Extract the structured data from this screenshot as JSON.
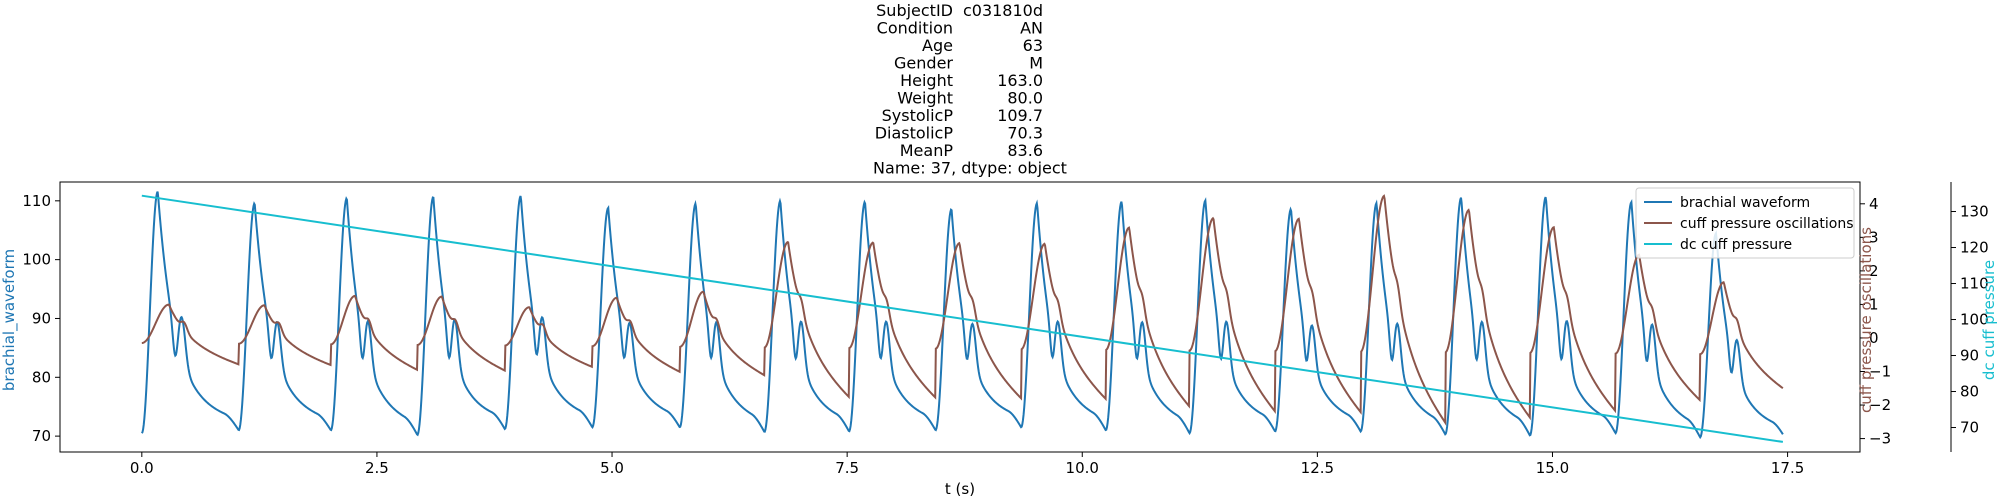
{
  "chart_data": {
    "type": "line",
    "title_lines": [
      {
        "key": "SubjectID",
        "value": "c031810d"
      },
      {
        "key": "Condition",
        "value": "AN"
      },
      {
        "key": "Age",
        "value": "63"
      },
      {
        "key": "Gender",
        "value": "M"
      },
      {
        "key": "Height",
        "value": "163.0"
      },
      {
        "key": "Weight",
        "value": "80.0"
      },
      {
        "key": "SystolicP",
        "value": "109.7"
      },
      {
        "key": "DiastolicP",
        "value": "70.3"
      },
      {
        "key": "MeanP",
        "value": "83.6"
      }
    ],
    "title_footer": "Name: 37, dtype: object",
    "xlabel": "t (s)",
    "ylabel_left": "brachial_waveform",
    "ylabel_right1": "cuff pressure oscillations",
    "ylabel_right2": "dc cuff pressure",
    "xlim": [
      -0.87,
      18.27
    ],
    "ylim_left": [
      67.3,
      113.2
    ],
    "ylim_right1": [
      -3.4,
      4.65
    ],
    "ylim_right2": [
      63.2,
      138.2
    ],
    "x_ticks": [
      0.0,
      2.5,
      5.0,
      7.5,
      10.0,
      12.5,
      15.0,
      17.5
    ],
    "x_tick_labels": [
      "0.0",
      "2.5",
      "5.0",
      "7.5",
      "10.0",
      "12.5",
      "15.0",
      "17.5"
    ],
    "y_left_ticks": [
      70,
      80,
      90,
      100,
      110
    ],
    "y_left_tick_labels": [
      "70",
      "80",
      "90",
      "100",
      "110"
    ],
    "y_right1_ticks": [
      -3,
      -2,
      -1,
      0,
      1,
      2,
      3,
      4
    ],
    "y_right1_tick_labels": [
      "−3",
      "−2",
      "−1",
      "0",
      "1",
      "2",
      "3",
      "4"
    ],
    "y_right2_ticks": [
      70,
      80,
      90,
      100,
      110,
      120,
      130
    ],
    "y_right2_tick_labels": [
      "70",
      "80",
      "90",
      "100",
      "110",
      "120",
      "130"
    ],
    "duration_s": 17.45,
    "beats": [
      {
        "t": 0.0,
        "peak": 111.5,
        "min": 70.5,
        "osc": 1.0
      },
      {
        "t": 1.03,
        "peak": 109.6,
        "min": 71.0,
        "osc": 1.0
      },
      {
        "t": 2.01,
        "peak": 110.6,
        "min": 71.0,
        "osc": 1.3
      },
      {
        "t": 2.93,
        "peak": 110.5,
        "min": 70.2,
        "osc": 1.3
      },
      {
        "t": 3.86,
        "peak": 110.8,
        "min": 71.2,
        "osc": 1.0
      },
      {
        "t": 4.79,
        "peak": 108.8,
        "min": 71.5,
        "osc": 1.3
      },
      {
        "t": 5.72,
        "peak": 109.7,
        "min": 71.5,
        "osc": 1.5
      },
      {
        "t": 6.62,
        "peak": 110.0,
        "min": 70.7,
        "osc": 3.0
      },
      {
        "t": 7.52,
        "peak": 109.8,
        "min": 70.8,
        "osc": 3.0
      },
      {
        "t": 8.44,
        "peak": 108.5,
        "min": 71.0,
        "osc": 3.0
      },
      {
        "t": 9.35,
        "peak": 109.7,
        "min": 71.5,
        "osc": 3.0
      },
      {
        "t": 10.25,
        "peak": 110.0,
        "min": 71.0,
        "osc": 3.5
      },
      {
        "t": 11.14,
        "peak": 110.0,
        "min": 70.5,
        "osc": 3.8
      },
      {
        "t": 12.05,
        "peak": 108.6,
        "min": 70.8,
        "osc": 3.8
      },
      {
        "t": 12.96,
        "peak": 109.7,
        "min": 70.8,
        "osc": 4.5
      },
      {
        "t": 13.86,
        "peak": 110.6,
        "min": 70.3,
        "osc": 4.1
      },
      {
        "t": 14.76,
        "peak": 110.6,
        "min": 70.1,
        "osc": 3.6
      },
      {
        "t": 15.67,
        "peak": 109.9,
        "min": 70.5,
        "osc": 2.8
      },
      {
        "t": 16.57,
        "peak": 104.5,
        "min": 69.8,
        "osc": 2.0
      }
    ],
    "series": [
      {
        "name": "brachial waveform",
        "axis": "left",
        "color": "#1f77b4"
      },
      {
        "name": "cuff pressure oscillations",
        "axis": "right1",
        "color": "#8c564b"
      },
      {
        "name": "dc cuff pressure",
        "axis": "right2",
        "color": "#17becf",
        "x": [
          0.0,
          17.45
        ],
        "values": [
          134.4,
          66.0
        ]
      }
    ],
    "legend": "top-right",
    "grid": false
  }
}
